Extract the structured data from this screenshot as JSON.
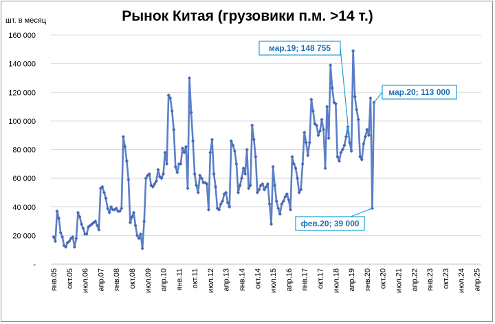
{
  "title": "Рынок Китая (грузовики п.м. >14 т.)",
  "unit_label": "шт. в месяц",
  "chart_data": {
    "type": "line",
    "title": "Рынок Китая (грузовики п.м. >14 т.)",
    "ylabel": "шт. в месяц",
    "xlabel": "",
    "ylim": [
      0,
      160000
    ],
    "y_ticks": [
      "-",
      "20 000",
      "40 000",
      "60 000",
      "80 000",
      "100 000",
      "120 000",
      "140 000",
      "160 000"
    ],
    "x_ticks": [
      "янв.05",
      "окт.05",
      "июл.06",
      "апр.07",
      "янв.08",
      "окт.08",
      "июл.09",
      "апр.10",
      "янв.11",
      "окт.11",
      "июл.12",
      "апр.13",
      "янв.14",
      "окт.14",
      "июл.15",
      "апр.16",
      "янв.17",
      "окт.17",
      "июл.18",
      "апр.19",
      "янв.20",
      "окт.20",
      "июл.21",
      "апр.22",
      "янв.23",
      "окт.23",
      "июл.24",
      "апр.25"
    ],
    "x_start": "янв.05",
    "x_end": "апр.25",
    "grid": true,
    "series_color": "#5b7fc8",
    "marker_color": "#4a67b0",
    "series": [
      {
        "name": "",
        "values": [
          19000,
          16000,
          37000,
          32000,
          22000,
          19000,
          13000,
          12000,
          15000,
          16000,
          18000,
          19000,
          12000,
          18000,
          36000,
          33000,
          28000,
          25000,
          21000,
          21000,
          26000,
          27000,
          28000,
          29000,
          30000,
          27000,
          24000,
          53000,
          54000,
          50000,
          46000,
          39000,
          36000,
          40000,
          38000,
          38000,
          39000,
          37000,
          37000,
          39000,
          89000,
          82000,
          72000,
          59000,
          29000,
          33000,
          36000,
          27000,
          20000,
          18000,
          21000,
          11000,
          30000,
          60000,
          62000,
          63000,
          55000,
          54000,
          56000,
          58000,
          66000,
          61000,
          60000,
          63000,
          78000,
          70000,
          118000,
          116000,
          107000,
          94000,
          68000,
          64000,
          70000,
          70000,
          81000,
          78000,
          82000,
          53000,
          130000,
          106000,
          86000,
          63000,
          55000,
          50000,
          62000,
          60000,
          57000,
          57000,
          56000,
          38000,
          78000,
          87000,
          63000,
          54000,
          39000,
          38000,
          42000,
          44000,
          49000,
          50000,
          43000,
          40000,
          86000,
          83000,
          79000,
          70000,
          50000,
          55000,
          60000,
          67000,
          63000,
          80000,
          53000,
          55000,
          97000,
          87000,
          75000,
          50000,
          52000,
          55000,
          56000,
          52000,
          54000,
          56000,
          42000,
          28000,
          68000,
          55000,
          44000,
          39000,
          35000,
          42000,
          44000,
          47000,
          49000,
          45000,
          38000,
          75000,
          70000,
          67000,
          60000,
          50000,
          52000,
          70000,
          92000,
          85000,
          76000,
          85000,
          115000,
          107000,
          98000,
          97000,
          90000,
          93000,
          101000,
          94000,
          67000,
          110000,
          88000,
          139000,
          123000,
          113000,
          112000,
          75000,
          72000,
          78000,
          80000,
          83000,
          89000,
          96000,
          85000,
          79000,
          149000,
          117000,
          108000,
          101000,
          75000,
          73000,
          84000,
          89000,
          94000,
          90000,
          116000,
          39000,
          113000
        ]
      }
    ],
    "annotations": [
      {
        "label": "мар.19;  148 755"
      },
      {
        "label": "мар.20;  113 000"
      },
      {
        "label": "фев.20;  39 000"
      }
    ]
  }
}
